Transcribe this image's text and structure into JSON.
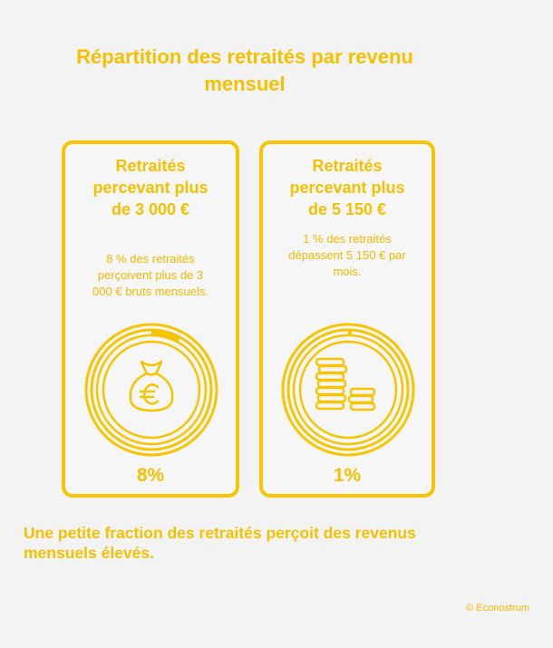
{
  "title": "Répartition des retraités par revenu mensuel",
  "cards": [
    {
      "title": "Retraités percevant plus de 3 000 €",
      "description": "8 % des retraités perçoivent plus de 3 000 € bruts mensuels.",
      "percent_label": "8%",
      "percent_value": 8,
      "icon": "money-bag-euro-icon"
    },
    {
      "title": "Retraités percevant plus de 5 150 €",
      "description": "1 % des retraités dépassent 5 150 € par mois.",
      "percent_label": "1%",
      "percent_value": 1,
      "icon": "coin-stacks-icon"
    }
  ],
  "footer": "Une petite fraction des retraités perçoit des revenus mensuels élevés.",
  "credit": "© Econostrum",
  "colors": {
    "accent": "#f7c400",
    "background": "#f3f3f3"
  }
}
